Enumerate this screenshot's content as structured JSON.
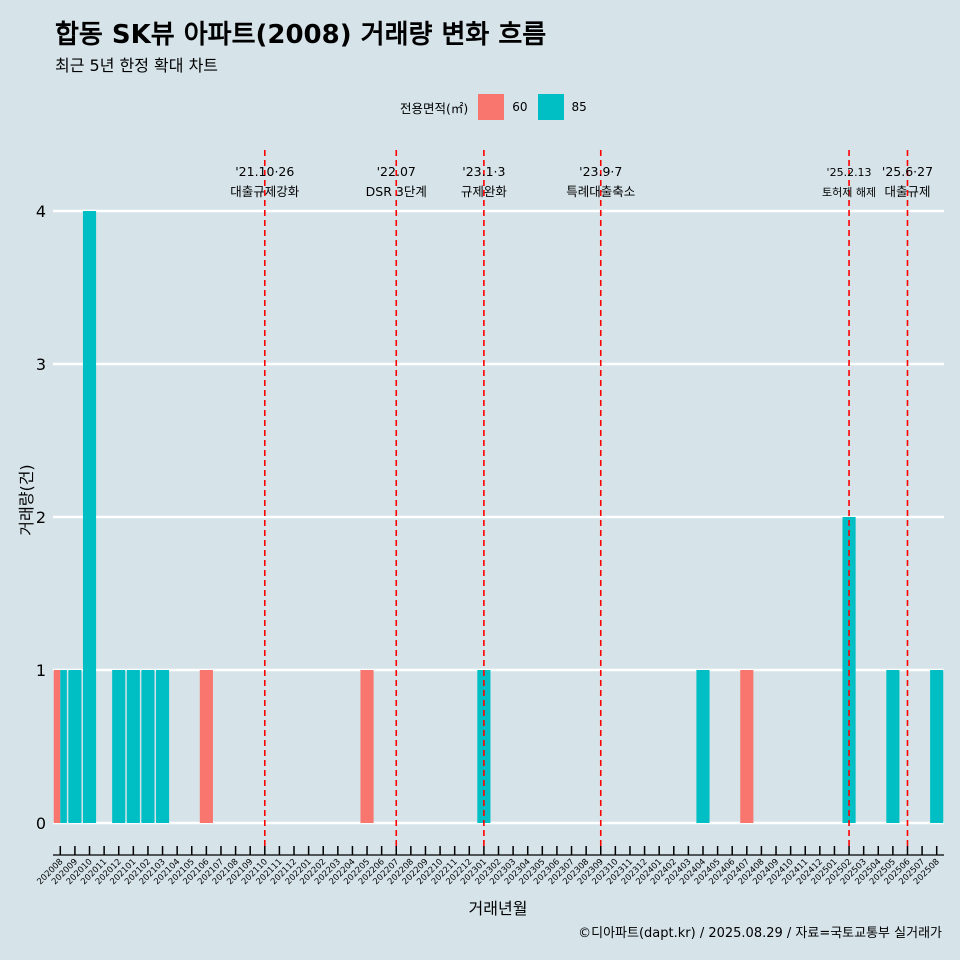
{
  "title": "합동 SK뷰 아파트(2008) 거래량 변화 흐름",
  "subtitle": "최근 5년 한정 확대 차트",
  "caption": "©디아파트(dapt.kr) / 2025.08.29 / 자료=국토교통부 실거래가",
  "legend": {
    "title": "전용면적(㎡)",
    "items": [
      {
        "label": "60",
        "color": "#f8766d"
      },
      {
        "label": "85",
        "color": "#00bfc4"
      }
    ]
  },
  "chart_data": {
    "type": "bar",
    "xlabel": "거래년월",
    "ylabel": "거래량(건)",
    "ylim": [
      0,
      4
    ],
    "yticks": [
      0,
      1,
      2,
      3,
      4
    ],
    "grid": true,
    "legend_position": "top",
    "categories": [
      "202008",
      "202009",
      "202010",
      "202011",
      "202012",
      "202101",
      "202102",
      "202103",
      "202104",
      "202105",
      "202106",
      "202107",
      "202108",
      "202109",
      "202110",
      "202111",
      "202112",
      "202201",
      "202202",
      "202203",
      "202204",
      "202205",
      "202206",
      "202207",
      "202208",
      "202209",
      "202210",
      "202211",
      "202212",
      "202301",
      "202302",
      "202303",
      "202304",
      "202305",
      "202306",
      "202307",
      "202308",
      "202309",
      "202310",
      "202311",
      "202312",
      "202401",
      "202402",
      "202403",
      "202404",
      "202405",
      "202406",
      "202407",
      "202408",
      "202409",
      "202410",
      "202411",
      "202412",
      "202501",
      "202502",
      "202503",
      "202504",
      "202505",
      "202506",
      "202507",
      "202508"
    ],
    "series": [
      {
        "name": "60",
        "color": "#f8766d",
        "values": [
          1,
          0,
          0,
          0,
          0,
          0,
          0,
          0,
          0,
          0,
          1,
          0,
          0,
          0,
          0,
          0,
          0,
          0,
          0,
          0,
          0,
          1,
          0,
          0,
          0,
          0,
          0,
          0,
          0,
          0,
          0,
          0,
          0,
          0,
          0,
          0,
          0,
          0,
          0,
          0,
          0,
          0,
          0,
          0,
          0,
          0,
          0,
          1,
          0,
          0,
          0,
          0,
          0,
          0,
          0,
          0,
          0,
          0,
          0,
          0,
          0
        ]
      },
      {
        "name": "85",
        "color": "#00bfc4",
        "values": [
          1,
          1,
          4,
          0,
          1,
          1,
          1,
          1,
          0,
          0,
          0,
          0,
          0,
          0,
          0,
          0,
          0,
          0,
          0,
          0,
          0,
          0,
          0,
          0,
          0,
          0,
          0,
          0,
          0,
          1,
          0,
          0,
          0,
          0,
          0,
          0,
          0,
          0,
          0,
          0,
          0,
          0,
          0,
          0,
          1,
          0,
          0,
          0,
          0,
          0,
          0,
          0,
          0,
          0,
          2,
          0,
          0,
          1,
          0,
          0,
          1
        ]
      }
    ],
    "annotations": [
      {
        "date": "'21.10·26",
        "text": "대출규제강화",
        "at": "202110",
        "small": false
      },
      {
        "date": "'22.07",
        "text": "DSR 3단계",
        "at": "202207",
        "small": false
      },
      {
        "date": "'23.1·3",
        "text": "규제완화",
        "at": "202301",
        "small": false
      },
      {
        "date": "'23.9·7",
        "text": "특례대출축소",
        "at": "202309",
        "small": false
      },
      {
        "date": "'25.2.13",
        "text": "토허제 해제",
        "at": "202502",
        "small": true
      },
      {
        "date": "'25.6·27",
        "text": "대출규제",
        "at": "202506",
        "small": false
      }
    ],
    "annotation_line_color": "#ff0000"
  }
}
